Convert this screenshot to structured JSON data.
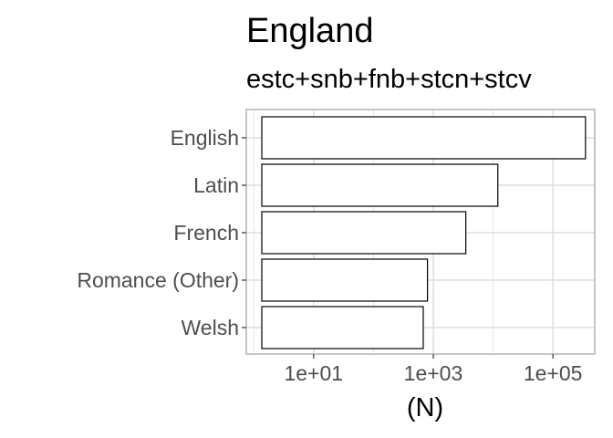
{
  "chart_data": {
    "type": "bar",
    "orientation": "horizontal",
    "title": "England",
    "subtitle": "estc+snb+fnb+stcn+stcv",
    "xlabel": "(N)",
    "ylabel": "",
    "x_scale": "log10",
    "categories": [
      "English",
      "Latin",
      "French",
      "Romance (Other)",
      "Welsh"
    ],
    "values": [
      350000,
      12000,
      3500,
      800,
      680
    ],
    "xlim": [
      0.75,
      500000
    ],
    "x_ticks": [
      10,
      1000,
      100000
    ],
    "x_tick_labels": [
      "1e+01",
      "1e+03",
      "1e+05"
    ],
    "grid": true,
    "legend": "none",
    "colors": {
      "bar_fill": "#ffffff",
      "bar_stroke": "#000000",
      "grid": "#dedede",
      "panel_border": "#b3b3b3"
    }
  }
}
